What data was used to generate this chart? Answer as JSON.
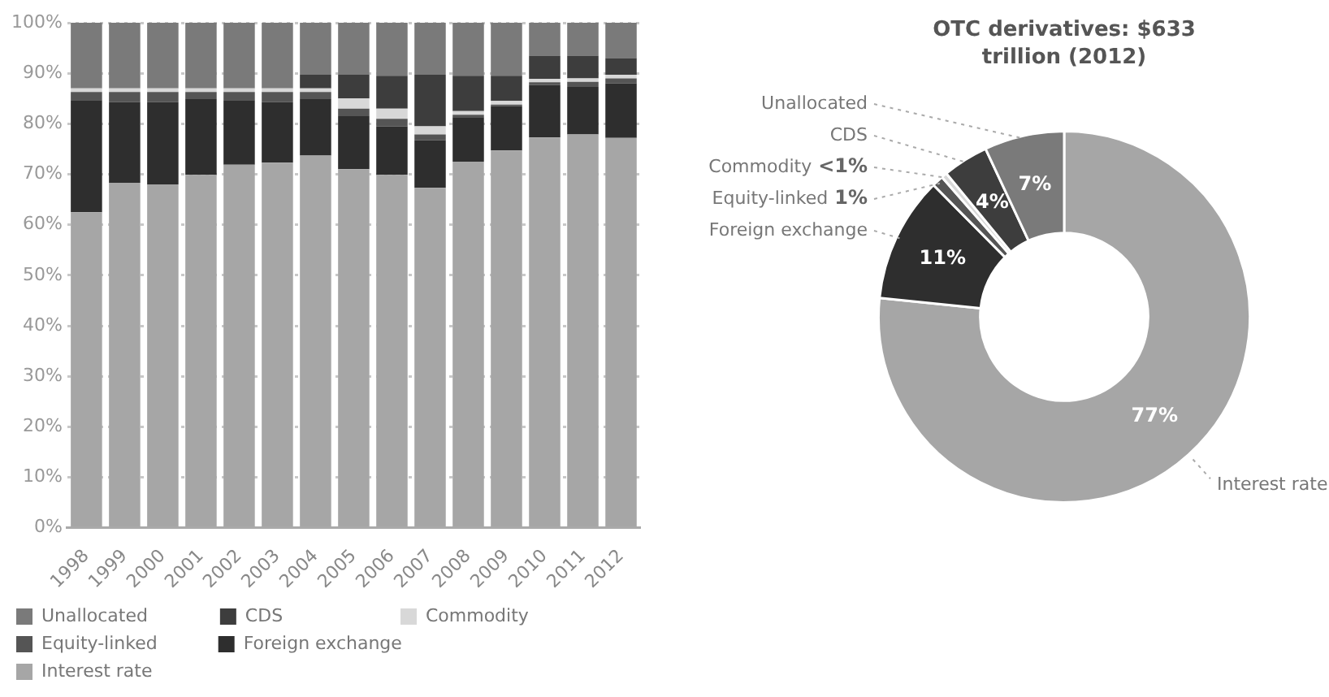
{
  "chart_data": [
    {
      "type": "bar",
      "stacked": true,
      "categories": [
        "1998",
        "1999",
        "2000",
        "2001",
        "2002",
        "2003",
        "2004",
        "2005",
        "2006",
        "2007",
        "2008",
        "2009",
        "2010",
        "2011",
        "2012"
      ],
      "series": [
        {
          "name": "Interest rate",
          "color": "#a6a6a6",
          "values": [
            62.5,
            68.3,
            68,
            69.9,
            71.9,
            72.3,
            73.7,
            71,
            69.9,
            67.3,
            72.5,
            74.7,
            77.3,
            77.9,
            77.2
          ]
        },
        {
          "name": "Foreign exchange",
          "color": "#2e2e2e",
          "values": [
            22.2,
            16,
            16.3,
            15,
            12.8,
            12,
            11.2,
            10.5,
            9.6,
            9.4,
            8.8,
            8.8,
            10.4,
            9.4,
            10.8
          ]
        },
        {
          "name": "Equity-linked",
          "color": "#555555",
          "values": [
            1.6,
            2,
            2,
            1.4,
            1.6,
            2,
            1.4,
            1.5,
            1.5,
            1.2,
            0.5,
            0.3,
            0.5,
            1,
            1
          ]
        },
        {
          "name": "Commodity",
          "color": "#d8d8d8",
          "values": [
            0.7,
            0.7,
            0.7,
            0.7,
            0.7,
            0.7,
            0.7,
            2,
            2,
            1.6,
            0.7,
            0.7,
            0.7,
            0.7,
            0.7
          ]
        },
        {
          "name": "CDS",
          "color": "#3d3d3d",
          "values": [
            0,
            0,
            0,
            0,
            0,
            0,
            2.7,
            4.7,
            6.5,
            10.2,
            7,
            5,
            4.6,
            4.5,
            3.3
          ]
        },
        {
          "name": "Unallocated",
          "color": "#7a7a7a",
          "values": [
            13,
            13,
            13,
            13,
            13,
            13,
            10.3,
            10.3,
            10.5,
            10.3,
            10.5,
            10.5,
            6.5,
            6.5,
            7
          ]
        }
      ],
      "ylim": [
        0,
        100
      ],
      "yticks": [
        {
          "value": 0,
          "label": "0%"
        },
        {
          "value": 10,
          "label": "10%"
        },
        {
          "value": 20,
          "label": "20%"
        },
        {
          "value": 30,
          "label": "30%"
        },
        {
          "value": 40,
          "label": "40%"
        },
        {
          "value": 50,
          "label": "50%"
        },
        {
          "value": 60,
          "label": "60%"
        },
        {
          "value": 70,
          "label": "70%"
        },
        {
          "value": 80,
          "label": "80%"
        },
        {
          "value": 90,
          "label": "90%"
        },
        {
          "value": 100,
          "label": "100%"
        }
      ],
      "grid": "y",
      "legend": "bottom"
    },
    {
      "type": "donut",
      "title": "OTC derivatives: $633 trillion (2012)",
      "categories": [
        "Interest rate",
        "Foreign exchange",
        "Equity-linked",
        "Commodity",
        "CDS",
        "Unallocated"
      ],
      "values": [
        77,
        11,
        1,
        0.5,
        4,
        7
      ],
      "colors": [
        "#a6a6a6",
        "#2e2e2e",
        "#555555",
        "#d8d8d8",
        "#3d3d3d",
        "#7a7a7a"
      ],
      "value_labels": [
        "77%",
        "11%",
        "1%",
        "<1%",
        "4%",
        "7%"
      ]
    }
  ]
}
